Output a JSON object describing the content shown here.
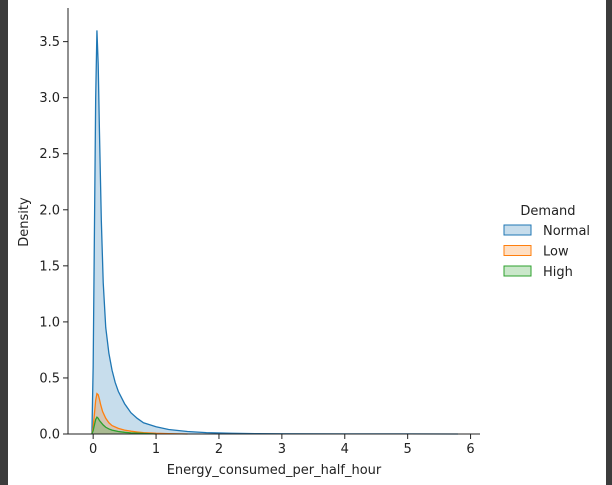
{
  "chart_data": {
    "type": "area",
    "xlabel": "Energy_consumed_per_half_hour",
    "ylabel": "Density",
    "xlim": [
      -0.4,
      6.15
    ],
    "ylim": [
      0,
      3.8
    ],
    "xticks": [
      "0",
      "1",
      "2",
      "3",
      "4",
      "5",
      "6"
    ],
    "yticks": [
      "0.0",
      "0.5",
      "1.0",
      "1.5",
      "2.0",
      "2.5",
      "3.0",
      "3.5"
    ],
    "legend": {
      "title": "Demand",
      "placement": "right",
      "entries": [
        "Normal",
        "Low",
        "High"
      ]
    },
    "series": [
      {
        "name": "Normal",
        "color": "#1f77b4",
        "x": [
          -0.02,
          0.0,
          0.02,
          0.04,
          0.06,
          0.08,
          0.1,
          0.13,
          0.16,
          0.2,
          0.25,
          0.3,
          0.35,
          0.4,
          0.5,
          0.6,
          0.7,
          0.8,
          1.0,
          1.2,
          1.5,
          1.8,
          2.2,
          2.6,
          3.0,
          4.0,
          5.0,
          5.8
        ],
        "y": [
          0.0,
          0.6,
          1.8,
          3.0,
          3.6,
          3.3,
          2.7,
          1.9,
          1.35,
          0.95,
          0.72,
          0.57,
          0.46,
          0.38,
          0.27,
          0.19,
          0.14,
          0.1,
          0.065,
          0.04,
          0.022,
          0.012,
          0.006,
          0.003,
          0.002,
          0.001,
          0.001,
          0.0
        ]
      },
      {
        "name": "Low",
        "color": "#ff7f0e",
        "x": [
          -0.02,
          0.0,
          0.02,
          0.04,
          0.06,
          0.08,
          0.1,
          0.12,
          0.15,
          0.2,
          0.25,
          0.3,
          0.4,
          0.5,
          0.6,
          0.7,
          0.8,
          1.0,
          1.2,
          1.5
        ],
        "y": [
          0.0,
          0.06,
          0.18,
          0.3,
          0.36,
          0.35,
          0.31,
          0.26,
          0.2,
          0.14,
          0.1,
          0.075,
          0.05,
          0.035,
          0.025,
          0.018,
          0.012,
          0.006,
          0.003,
          0.0
        ]
      },
      {
        "name": "High",
        "color": "#2ca02c",
        "x": [
          -0.02,
          0.0,
          0.02,
          0.04,
          0.06,
          0.08,
          0.1,
          0.13,
          0.16,
          0.2,
          0.25,
          0.3,
          0.4,
          0.5,
          0.6,
          0.8,
          1.0
        ],
        "y": [
          0.0,
          0.03,
          0.08,
          0.13,
          0.15,
          0.14,
          0.12,
          0.1,
          0.08,
          0.06,
          0.045,
          0.035,
          0.022,
          0.015,
          0.01,
          0.005,
          0.0
        ]
      }
    ]
  }
}
